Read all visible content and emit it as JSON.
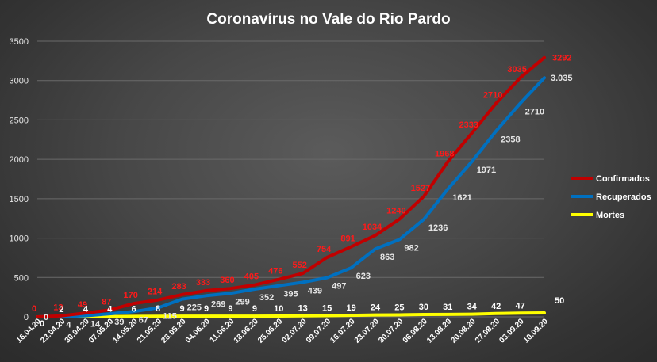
{
  "chart_data": {
    "type": "line",
    "title": "Coronavírus  no Vale do Rio Pardo",
    "xlabel": "",
    "ylabel": "",
    "ylim": [
      0,
      3500
    ],
    "yticks": [
      "0",
      "500",
      "1000",
      "1500",
      "2000",
      "2500",
      "3000",
      "3500"
    ],
    "grid": true,
    "legend_position": "right",
    "x": [
      "16.04.20",
      "23.04.20",
      "30.04.20",
      "07.05.20",
      "14.05.20",
      "21.05.20",
      "28.05.20",
      "04.06.20",
      "11.06.20",
      "18.06.20",
      "25.06.20",
      "02.07.20",
      "09.07.20",
      "16.07.20",
      "23.07.20",
      "30.07.20",
      "06.08.20",
      "13.08.20",
      "20.08.20",
      "27.08.20",
      "03.09.20",
      "10.09.20"
    ],
    "series": [
      {
        "name": "Confirmados",
        "color": "#c00000",
        "label_color": "#ff1a1a",
        "values": [
          0,
          13,
          49,
          87,
          170,
          214,
          283,
          333,
          360,
          405,
          476,
          552,
          754,
          891,
          1034,
          1240,
          1527,
          1968,
          2333,
          2710,
          3035,
          3292
        ],
        "labels": [
          "0",
          "13",
          "49",
          "87",
          "170",
          "214",
          "283",
          "333",
          "360",
          "405",
          "476",
          "552",
          "754",
          "891",
          "1034",
          "1240",
          "1527",
          "1968",
          "2333",
          "2710",
          "3035",
          "3292"
        ]
      },
      {
        "name": "Recuperados",
        "color": "#0070c0",
        "label_color": "#e6e6e6",
        "values": [
          0,
          4,
          14,
          39,
          67,
          115,
          225,
          269,
          299,
          352,
          395,
          439,
          497,
          623,
          863,
          982,
          1236,
          1621,
          1971,
          2358,
          2710,
          3035
        ],
        "labels": [
          "0",
          "4",
          "14",
          "39",
          "67",
          "115",
          "225",
          "269",
          "299",
          "352",
          "395",
          "439",
          "497",
          "623",
          "863",
          "982",
          "1236",
          "1621",
          "1971",
          "2358",
          "2710",
          "3.035"
        ]
      },
      {
        "name": "Mortes",
        "color": "#ffff00",
        "label_color": "#ffffff",
        "values": [
          0,
          2,
          4,
          4,
          6,
          8,
          9,
          9,
          9,
          9,
          10,
          13,
          15,
          19,
          24,
          25,
          30,
          31,
          34,
          42,
          47,
          50
        ],
        "labels": [
          "0",
          "2",
          "4",
          "4",
          "6",
          "8",
          "9",
          "9",
          "9",
          "9",
          "10",
          "13",
          "15",
          "19",
          "24",
          "25",
          "30",
          "31",
          "34",
          "42",
          "47",
          "50"
        ]
      }
    ]
  }
}
